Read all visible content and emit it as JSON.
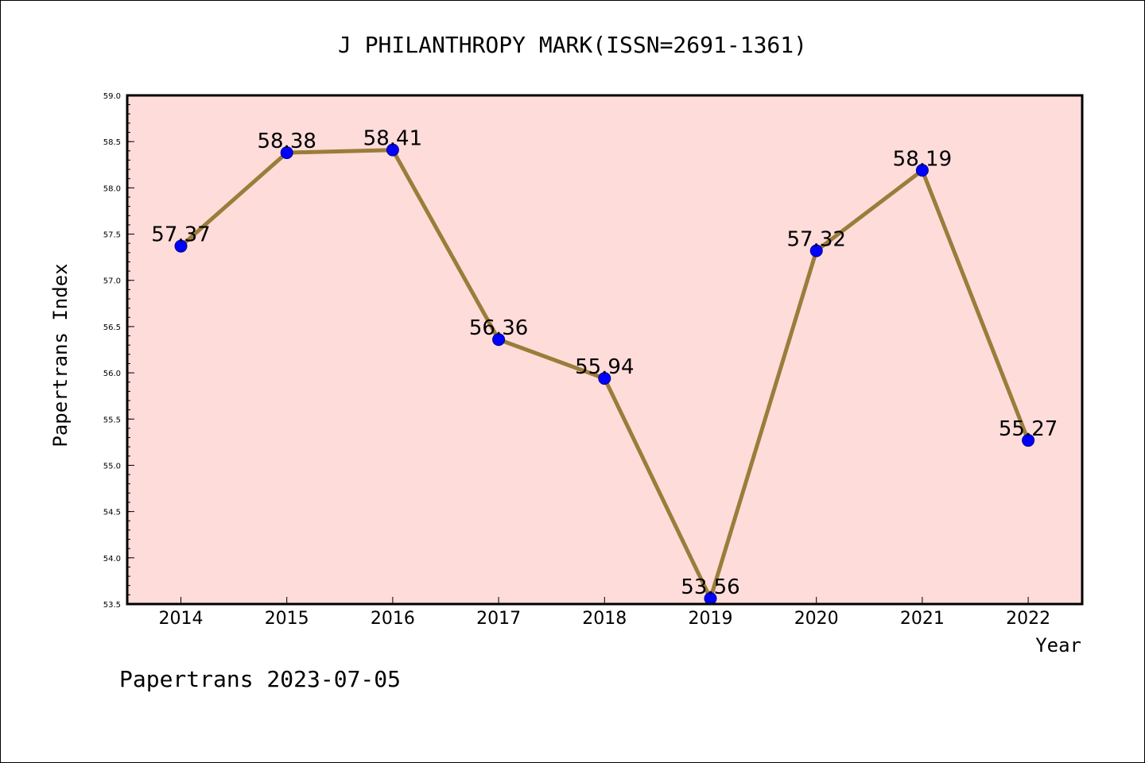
{
  "chart_data": {
    "type": "line",
    "title": "J PHILANTHROPY MARK(ISSN=2691-1361)",
    "xlabel": "Year",
    "ylabel": "Papertrans Index",
    "categories": [
      "2014",
      "2015",
      "2016",
      "2017",
      "2018",
      "2019",
      "2020",
      "2021",
      "2022"
    ],
    "series": [
      {
        "values": [
          57.37,
          58.38,
          58.41,
          56.36,
          55.94,
          53.56,
          57.32,
          58.19,
          55.27
        ],
        "labels": [
          "57.37",
          "58.38",
          "58.41",
          "56.36",
          "55.94",
          "53.56",
          "57.32",
          "58.19",
          "55.27"
        ]
      }
    ],
    "ylim": [
      53.5,
      59.0
    ],
    "yticks": [
      "53.5",
      "54.0",
      "54.5",
      "55.0",
      "55.5",
      "56.0",
      "56.5",
      "57.0",
      "57.5",
      "58.0",
      "58.5",
      "59.0"
    ],
    "grid": false,
    "colors": {
      "plot_background": "#fddcda",
      "line": "#9a7d3a",
      "marker": "#0000ff",
      "marker_edge": "#00008b"
    }
  },
  "footer": {
    "text": "Papertrans 2023-07-05"
  }
}
